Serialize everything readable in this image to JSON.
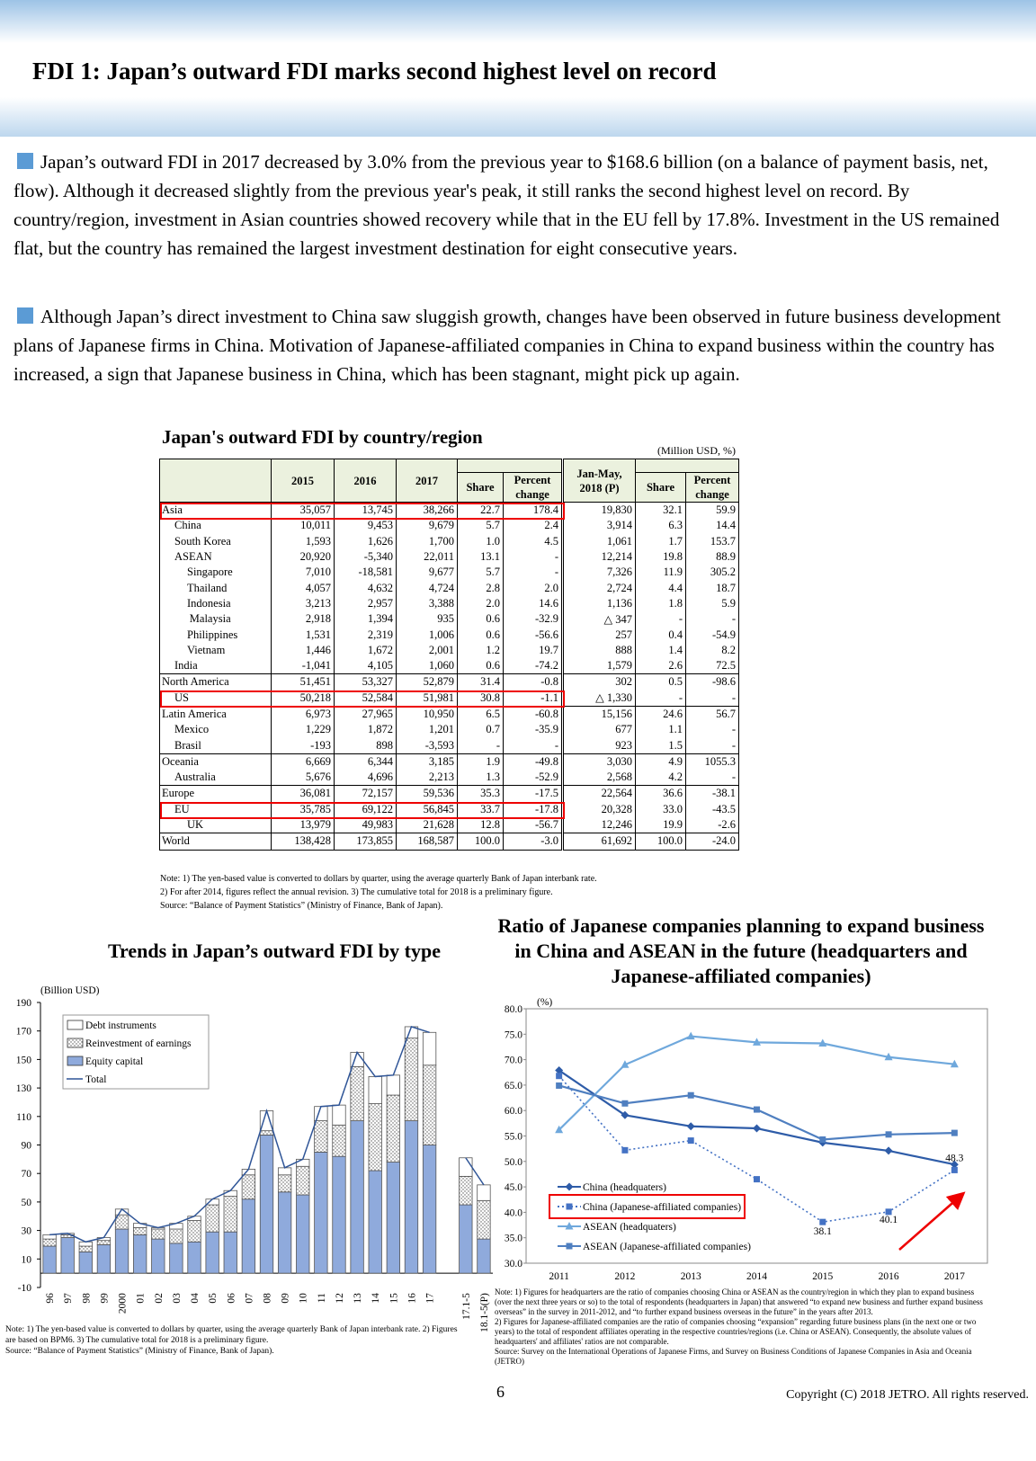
{
  "header": {
    "title": "FDI 1: Japan’s outward FDI marks second highest level on record"
  },
  "paragraphs": [
    "Japan’s outward FDI in 2017 decreased by 3.0% from the previous year to $168.6 billion (on a balance of payment basis, net, flow). Although it decreased slightly from the previous year's peak, it still ranks the second highest level on record. By country/region, investment in Asian countries showed recovery while that in the EU fell by 17.8%. Investment in the US remained flat, but the country has remained the largest investment destination for eight consecutive years.",
    "Although Japan’s direct investment to China saw sluggish growth, changes have been observed in future business development plans of Japanese firms in China. Motivation of Japanese-affiliated companies in China to expand business within the country has increased, a sign that Japanese business in China, which has been stagnant, might pick up again."
  ],
  "table": {
    "title": "Japan's outward FDI by country/region",
    "unit": "(Million USD, %)",
    "header": [
      "2015",
      "2016",
      "2017",
      "Share",
      "Percent change",
      "Jan-May, 2018 (P)",
      "Share",
      "Percent change"
    ],
    "rows": [
      [
        "Asia",
        "35,057",
        "13,745",
        "38,266",
        "22.7",
        "178.4",
        "19,830",
        "32.1",
        "59.9"
      ],
      [
        "China",
        "10,011",
        "9,453",
        "9,679",
        "5.7",
        "2.4",
        "3,914",
        "6.3",
        "14.4"
      ],
      [
        "South Korea",
        "1,593",
        "1,626",
        "1,700",
        "1.0",
        "4.5",
        "1,061",
        "1.7",
        "153.7"
      ],
      [
        "ASEAN",
        "20,920",
        "-5,340",
        "22,011",
        "13.1",
        "-",
        "12,214",
        "19.8",
        "88.9"
      ],
      [
        "Singapore",
        "7,010",
        "-18,581",
        "9,677",
        "5.7",
        "-",
        "7,326",
        "11.9",
        "305.2"
      ],
      [
        "Thailand",
        "4,057",
        "4,632",
        "4,724",
        "2.8",
        "2.0",
        "2,724",
        "4.4",
        "18.7"
      ],
      [
        "Indonesia",
        "3,213",
        "2,957",
        "3,388",
        "2.0",
        "14.6",
        "1,136",
        "1.8",
        "5.9"
      ],
      [
        "Malaysia",
        "2,918",
        "1,394",
        "935",
        "0.6",
        "-32.9",
        "△ 347",
        "-",
        "-"
      ],
      [
        "Philippines",
        "1,531",
        "2,319",
        "1,006",
        "0.6",
        "-56.6",
        "257",
        "0.4",
        "-54.9"
      ],
      [
        "Vietnam",
        "1,446",
        "1,672",
        "2,001",
        "1.2",
        "19.7",
        "888",
        "1.4",
        "8.2"
      ],
      [
        "India",
        "-1,041",
        "4,105",
        "1,060",
        "0.6",
        "-74.2",
        "1,579",
        "2.6",
        "72.5"
      ],
      [
        "North America",
        "51,451",
        "53,327",
        "52,879",
        "31.4",
        "-0.8",
        "302",
        "0.5",
        "-98.6"
      ],
      [
        "US",
        "50,218",
        "52,584",
        "51,981",
        "30.8",
        "-1.1",
        "△ 1,330",
        "-",
        "-"
      ],
      [
        "Latin America",
        "6,973",
        "27,965",
        "10,950",
        "6.5",
        "-60.8",
        "15,156",
        "24.6",
        "56.7"
      ],
      [
        "Mexico",
        "1,229",
        "1,872",
        "1,201",
        "0.7",
        "-35.9",
        "677",
        "1.1",
        "-"
      ],
      [
        "Brasil",
        "-193",
        "898",
        "-3,593",
        "-",
        "-",
        "923",
        "1.5",
        "-"
      ],
      [
        "Oceania",
        "6,669",
        "6,344",
        "3,185",
        "1.9",
        "-49.8",
        "3,030",
        "4.9",
        "1055.3"
      ],
      [
        "Australia",
        "5,676",
        "4,696",
        "2,213",
        "1.3",
        "-52.9",
        "2,568",
        "4.2",
        "-"
      ],
      [
        "Europe",
        "36,081",
        "72,157",
        "59,536",
        "35.3",
        "-17.5",
        "22,564",
        "36.6",
        "-38.1"
      ],
      [
        "EU",
        "35,785",
        "69,122",
        "56,845",
        "33.7",
        "-17.8",
        "20,328",
        "33.0",
        "-43.5"
      ],
      [
        "UK",
        "13,979",
        "49,983",
        "21,628",
        "12.8",
        "-56.7",
        "12,246",
        "19.9",
        "-2.6"
      ],
      [
        "World",
        "138,428",
        "173,855",
        "168,587",
        "100.0",
        "-3.0",
        "61,692",
        "100.0",
        "-24.0"
      ]
    ],
    "notes": [
      "Note: 1) The yen-based value is converted to dollars by quarter, using the average quarterly Bank of Japan interbank rate.",
      "2) For after 2014, figures reflect the annual revision.  3) The cumulative total for 2018 is a preliminary figure.",
      "Source:  “Balance of Payment Statistics” (Ministry of Finance, Bank of Japan)."
    ]
  },
  "chart_data": [
    {
      "type": "bar",
      "stacked": true,
      "title": "Trends in Japan’s outward FDI by type",
      "y_label": "(Billion USD)",
      "categories": [
        "96",
        "97",
        "98",
        "99",
        "2000",
        "01",
        "02",
        "03",
        "04",
        "05",
        "06",
        "07",
        "08",
        "09",
        "10",
        "11",
        "12",
        "13",
        "14",
        "15",
        "16",
        "17",
        null,
        "17.1-5",
        "18.1-5(P)"
      ],
      "series": [
        {
          "name": "Equity capital",
          "color": "#8faadc",
          "values": [
            19,
            25,
            15,
            20,
            31,
            27,
            24,
            21,
            22,
            29,
            29,
            52,
            97,
            57,
            55,
            85,
            82,
            107,
            72,
            78,
            107,
            90,
            null,
            48,
            24
          ]
        },
        {
          "name": "Reinvestment of earnings",
          "color": "#ffffff",
          "pattern": "dotted",
          "values": [
            5,
            2,
            4,
            3,
            10,
            5,
            7,
            10,
            15,
            19,
            25,
            17,
            3,
            12,
            20,
            22,
            22,
            38,
            47,
            47,
            58,
            56,
            null,
            20,
            27
          ]
        },
        {
          "name": "Debt instruments",
          "color": "#ffffff",
          "values": [
            3,
            1,
            3,
            2,
            4,
            3,
            1,
            4,
            3,
            4,
            4,
            4,
            14,
            5,
            5,
            10,
            14,
            10,
            19,
            14,
            8,
            23,
            null,
            13,
            11
          ]
        },
        {
          "name": "Total",
          "type": "line",
          "color": "#2f5597",
          "values": [
            27,
            28,
            22,
            25,
            45,
            35,
            32,
            35,
            40,
            52,
            58,
            73,
            114,
            74,
            80,
            117,
            118,
            155,
            138,
            139,
            173,
            169,
            null,
            81,
            62
          ]
        }
      ],
      "ylim": [
        -10,
        190
      ],
      "yticks": [
        -10,
        10,
        30,
        50,
        70,
        90,
        110,
        130,
        150,
        170,
        190
      ],
      "grid": false,
      "notes": [
        "Note: 1) The yen-based value is converted to dollars by quarter, using the average quarterly Bank of Japan interbank rate. 2) Figures are based on BPM6. 3) The cumulative total for 2018 is a preliminary figure.",
        "Source: “Balance of Payment Statistics” (Ministry of Finance, Bank of Japan)."
      ]
    },
    {
      "type": "line",
      "title": "Ratio of Japanese companies planning to expand business in China and ASEAN in the future (headquarters and Japanese-affiliated companies)",
      "y_label": "(%)",
      "categories": [
        "2011",
        "2012",
        "2013",
        "2014",
        "2015",
        "2016",
        "2017"
      ],
      "series": [
        {
          "name": "China (headquaters)",
          "color": "#2e5ca8",
          "marker": "diamond",
          "values": [
            67.9,
            59.1,
            56.9,
            56.5,
            53.7,
            52.1,
            49.4
          ]
        },
        {
          "name": "China (Japanese-affiliated companies)",
          "color": "#4472c4",
          "marker": "square",
          "dashed": true,
          "values": [
            66.8,
            52.2,
            54.1,
            46.5,
            38.1,
            40.1,
            48.3
          ]
        },
        {
          "name": "ASEAN (headquaters)",
          "color": "#6fa8dc",
          "marker": "triangle",
          "values": [
            56.2,
            69.0,
            74.6,
            73.4,
            73.2,
            70.5,
            69.1
          ]
        },
        {
          "name": "ASEAN (Japanese-affiliated companies)",
          "color": "#4f7fc0",
          "marker": "square",
          "values": [
            64.9,
            61.4,
            63.0,
            60.2,
            54.3,
            55.3,
            55.6
          ]
        }
      ],
      "ylim": [
        30,
        80
      ],
      "yticks": [
        {
          "value": 30,
          "label": "30.0"
        },
        {
          "value": 35,
          "label": "35.0"
        },
        {
          "value": 40,
          "label": "40.0"
        },
        {
          "value": 45,
          "label": "45.0"
        },
        {
          "value": 50,
          "label": "50.0"
        },
        {
          "value": 55,
          "label": "55.0"
        },
        {
          "value": 60,
          "label": "60.0"
        },
        {
          "value": 65,
          "label": "65.0"
        },
        {
          "value": 70,
          "label": "70.0"
        },
        {
          "value": 75,
          "label": "75.0"
        },
        {
          "value": 80,
          "label": "80.0"
        }
      ],
      "grid": false,
      "notes": [
        "Note: 1) Figures for headquarters are the ratio of companies choosing China or ASEAN as the country/region in which they plan to expand business (over the next three years or so) to the total of respondents (headquarters in Japan) that answered “to expand new business and further expand business overseas” in the survey in 2011-2012, and “to further expand business overseas in the future” in the years after 2013.",
        "2) Figures for Japanese-affiliated companies are the ratio of companies choosing “expansion” regarding future business plans (in the next one or two years) to the total of respondent affiliates operating in the respective countries/regions (i.e. China or ASEAN). Consequently, the absolute values of headquarters' and affiliates' ratios are not comparable.",
        "Source: Survey on the International Operations of Japanese Firms, and Survey on Business Conditions of Japanese Companies in Asia and Oceania (JETRO)"
      ]
    }
  ],
  "footer": {
    "page": "6",
    "copyright": "Copyright (C) 2018 JETRO. All rights reserved."
  }
}
